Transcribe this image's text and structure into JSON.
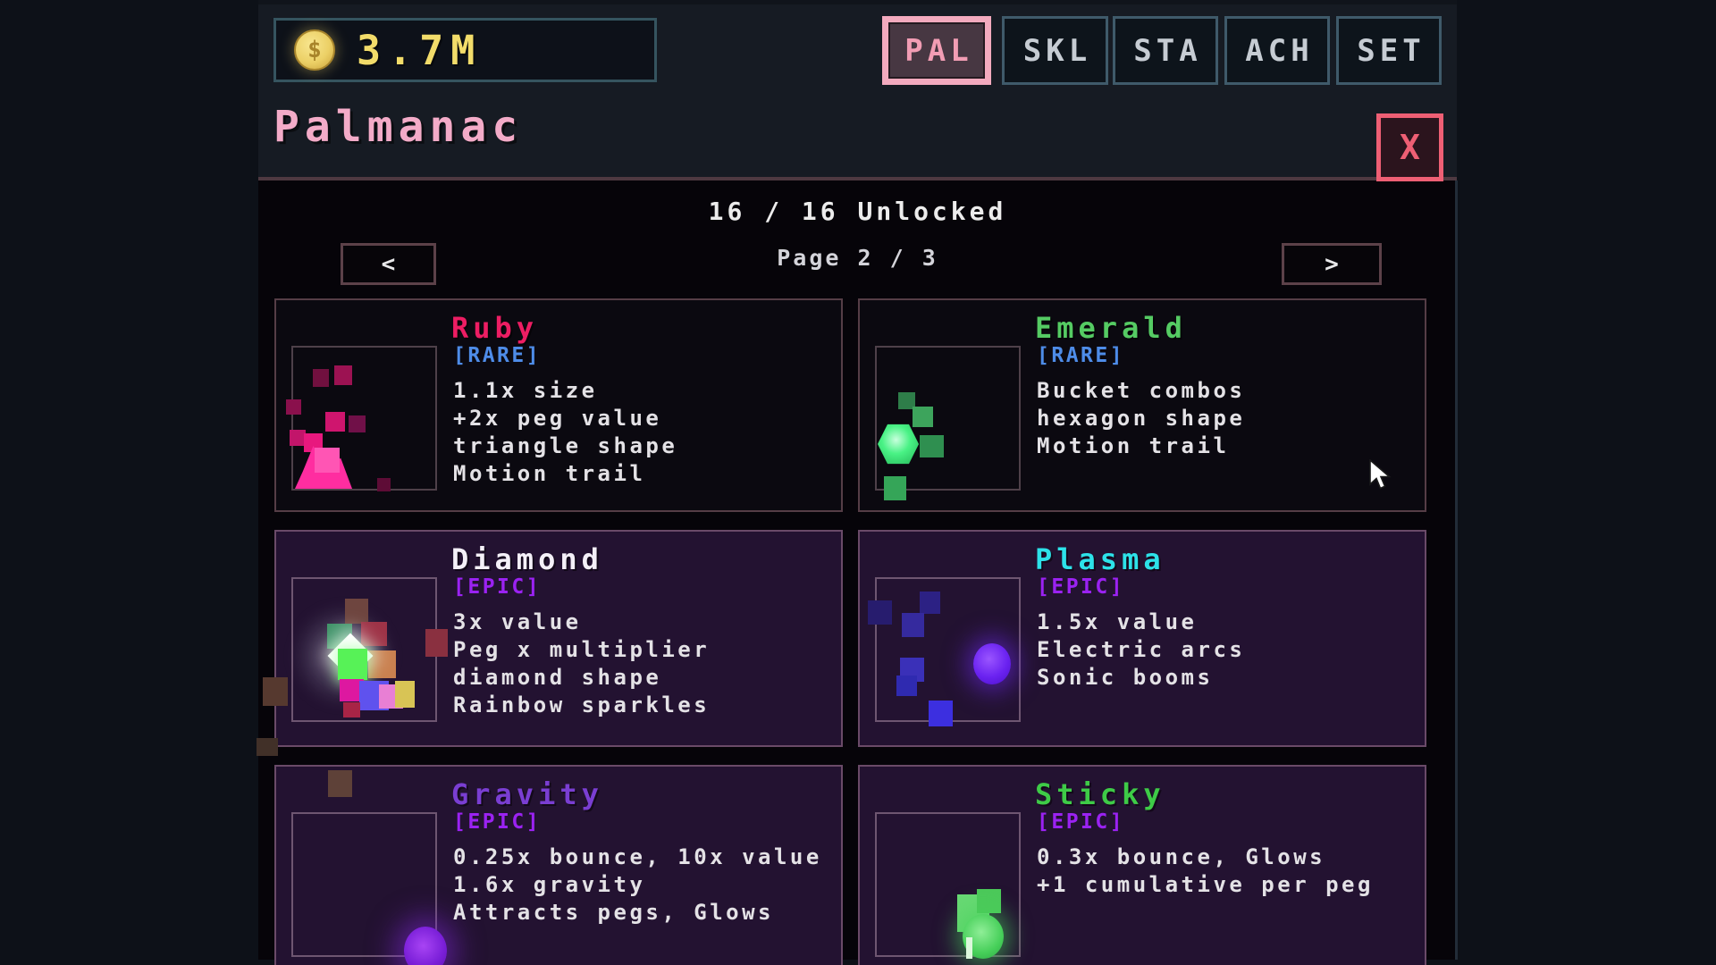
{
  "header": {
    "currency": {
      "amount": "3.7M",
      "coin_symbol": "$"
    },
    "tabs": [
      {
        "label": "PAL",
        "active": true
      },
      {
        "label": "SKL",
        "active": false
      },
      {
        "label": "STA",
        "active": false
      },
      {
        "label": "ACH",
        "active": false
      },
      {
        "label": "SET",
        "active": false
      }
    ],
    "title": "Palmanac",
    "close_label": "X"
  },
  "pagination": {
    "unlocked_status": "16 / 16 Unlocked",
    "page_label": "Page 2 / 3",
    "prev_icon": "<",
    "next_icon": ">"
  },
  "cards": [
    {
      "key": "ruby",
      "name": "Ruby",
      "rarity": "[RARE]",
      "tier": "rare",
      "title_color": "#ed1d63",
      "lines": [
        "1.1x size",
        "+2x peg value",
        "triangle shape",
        "Motion trail"
      ]
    },
    {
      "key": "emerald",
      "name": "Emerald",
      "rarity": "[RARE]",
      "tier": "rare",
      "title_color": "#55cb63",
      "lines": [
        "Bucket combos",
        "hexagon shape",
        "Motion trail"
      ]
    },
    {
      "key": "diamond",
      "name": "Diamond",
      "rarity": "[EPIC]",
      "tier": "epic",
      "title_color": "#f4f0f8",
      "lines": [
        "3x value",
        "Peg x multiplier",
        "diamond shape",
        "Rainbow sparkles"
      ]
    },
    {
      "key": "plasma",
      "name": "Plasma",
      "rarity": "[EPIC]",
      "tier": "epic",
      "title_color": "#2de2e9",
      "lines": [
        "1.5x value",
        "Electric arcs",
        "Sonic booms"
      ]
    },
    {
      "key": "gravity",
      "name": "Gravity",
      "rarity": "[EPIC]",
      "tier": "epic",
      "title_color": "#7a3ed2",
      "lines": [
        "0.25x bounce, 10x value",
        "1.6x gravity",
        "Attracts pegs, Glows"
      ]
    },
    {
      "key": "sticky",
      "name": "Sticky",
      "rarity": "[EPIC]",
      "tier": "epic",
      "title_color": "#3ecb47",
      "lines": [
        "0.3x bounce, Glows",
        "+1 cumulative per peg"
      ]
    }
  ],
  "colors": {
    "accent_pink": "#f3abc8",
    "rare_badge_blue": "#4e8ce8",
    "epic_badge_purple": "#9b22f2",
    "currency_gold": "#f2dc6a",
    "close_red": "#ee5f74",
    "tab_border_teal": "#3f5a6a",
    "panel_header_bg": "#161b23",
    "content_bg": "#060409"
  }
}
